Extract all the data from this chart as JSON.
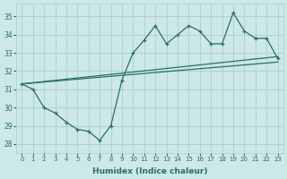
{
  "xlabel": "Humidex (Indice chaleur)",
  "xlim": [
    -0.5,
    23.5
  ],
  "ylim": [
    27.5,
    35.7
  ],
  "yticks": [
    28,
    29,
    30,
    31,
    32,
    33,
    34,
    35
  ],
  "xticks": [
    0,
    1,
    2,
    3,
    4,
    5,
    6,
    7,
    8,
    9,
    10,
    11,
    12,
    13,
    14,
    15,
    16,
    17,
    18,
    19,
    20,
    21,
    22,
    23
  ],
  "bg_color": "#cce8e8",
  "grid_color": "#aacece",
  "line_color": "#2a6e68",
  "line1_x": [
    0,
    1,
    2,
    3,
    4,
    5,
    6,
    7,
    8,
    9,
    10,
    11,
    12,
    13,
    14,
    15,
    16,
    17,
    18,
    19,
    20,
    21,
    22,
    23
  ],
  "line1_y": [
    31.3,
    31.0,
    30.0,
    29.7,
    29.2,
    28.8,
    28.7,
    28.2,
    29.0,
    31.5,
    33.0,
    33.7,
    34.5,
    33.5,
    34.0,
    34.5,
    34.2,
    33.5,
    33.5,
    35.2,
    34.2,
    33.8,
    33.8,
    32.7
  ],
  "line2_x": [
    0,
    23
  ],
  "line2_y": [
    31.3,
    32.7
  ],
  "line3_x": [
    0,
    23
  ],
  "line3_y": [
    31.3,
    32.7
  ]
}
